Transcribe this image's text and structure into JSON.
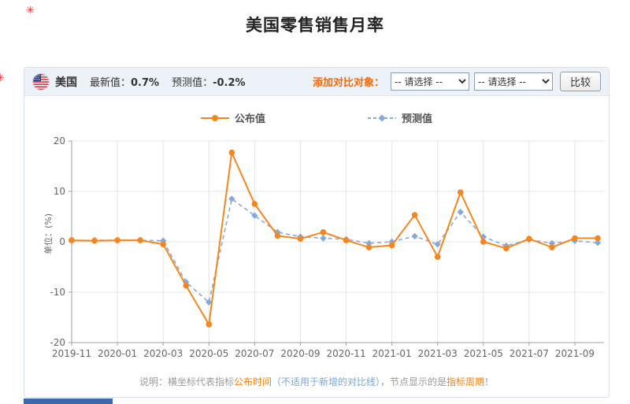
{
  "page": {
    "title": "美国零售销售月率"
  },
  "icons": {
    "red_mark_top": "✳",
    "red_mark_left": "✳",
    "flag": "us-flag-icon"
  },
  "header": {
    "country": "美国",
    "latest_label": "最新值：",
    "latest_value": "0.7%",
    "forecast_label": "预测值：",
    "forecast_value": "-0.2%",
    "compare_label": "添加对比对象：",
    "select1": "-- 请选择 --",
    "select2": "-- 请选择 --",
    "compare_button": "比较"
  },
  "legend": {
    "announced": "公布值",
    "forecast": "预测值"
  },
  "note": {
    "prefix": "说明：横坐标代表指标",
    "orange1": "公布时间",
    "blue": "（不适用于新增的对比线）",
    "mid": "，节点显示的是",
    "orange2": "指标周期",
    "suffix": "！"
  },
  "colors": {
    "announced": "#f5861f",
    "forecast": "#85aad9",
    "grid": "#e4e4e4",
    "axis": "#9aa0a6",
    "orange_text": "#ff7e00",
    "blue_text": "#79a7da",
    "header_bg": "#edf2f8",
    "bottom_bar": "#3e68ad"
  },
  "chart_data": {
    "type": "line",
    "title": "美国零售销售月率",
    "ylabel": "单位：(%)",
    "ylim": [
      -20,
      20
    ],
    "yticks": [
      20,
      10,
      0,
      -10,
      -20
    ],
    "xtick_every": 2,
    "grid": true,
    "legend_position": "top",
    "x": [
      "2019-11",
      "2019-12",
      "2020-01",
      "2020-02",
      "2020-03",
      "2020-04",
      "2020-05",
      "2020-06",
      "2020-07",
      "2020-08",
      "2020-09",
      "2020-10",
      "2020-11",
      "2020-12",
      "2021-01",
      "2021-02",
      "2021-03",
      "2021-04",
      "2021-05",
      "2021-06",
      "2021-07",
      "2021-08",
      "2021-09",
      "2021-10"
    ],
    "series": [
      {
        "name": "公布值",
        "style": "solid",
        "marker": "circle",
        "color": "#f5861f",
        "values": [
          0.3,
          0.2,
          0.3,
          0.3,
          -0.5,
          -8.7,
          -16.4,
          17.7,
          7.5,
          1.2,
          0.6,
          1.9,
          0.3,
          -1.1,
          -0.7,
          5.3,
          -3.0,
          9.8,
          0.0,
          -1.3,
          0.6,
          -1.1,
          0.7,
          0.7
        ]
      },
      {
        "name": "预测值",
        "style": "dashed",
        "marker": "diamond",
        "color": "#85aad9",
        "values": [
          0.2,
          0.3,
          0.3,
          0.3,
          0.2,
          -8.0,
          -12.0,
          8.5,
          5.2,
          1.9,
          1.0,
          0.7,
          0.5,
          -0.3,
          0.0,
          1.1,
          -0.5,
          5.9,
          1.0,
          -0.8,
          0.4,
          -0.3,
          0.2,
          -0.2
        ]
      }
    ]
  }
}
